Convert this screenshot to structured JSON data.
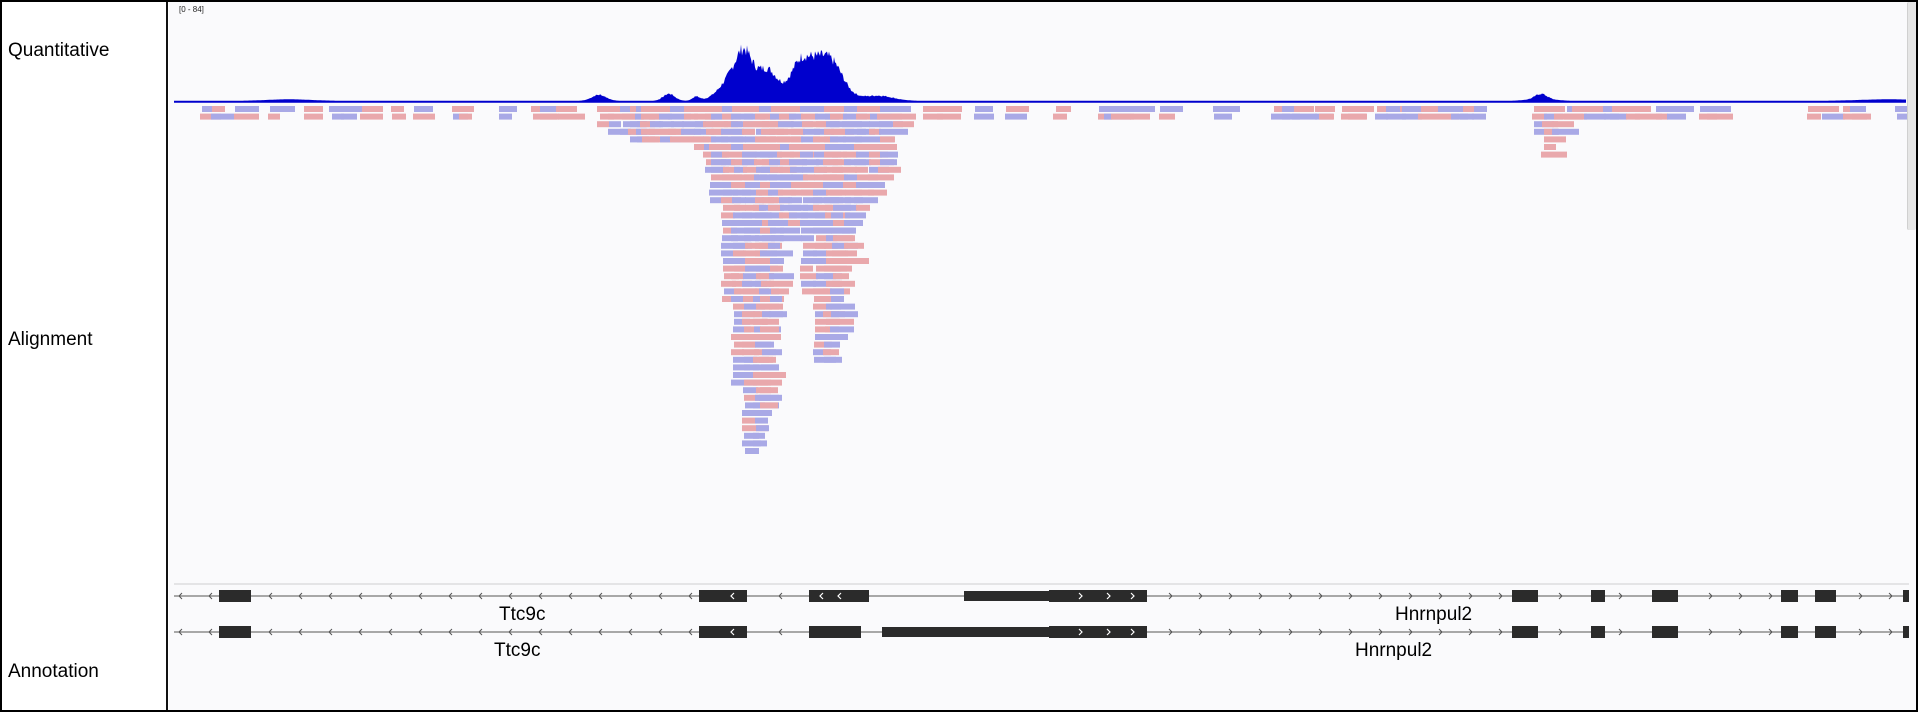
{
  "tracks": {
    "quantitative": {
      "label": "Quantitative",
      "range_label": "[0 - 84]"
    },
    "alignment": {
      "label": "Alignment"
    },
    "annotation": {
      "label": "Annotation"
    }
  },
  "colors": {
    "coverage": "#0000cd",
    "read_forward": "#e9a8ac",
    "read_reverse": "#a9a9e6",
    "gene": "#2b2b2b",
    "intron_line": "#555555"
  },
  "annotation": {
    "rows": [
      {
        "genes": [
          "Ttc9c",
          "Hnrnpul2"
        ]
      },
      {
        "genes": [
          "Ttc9c",
          "Hnrnpul2"
        ]
      }
    ]
  }
}
